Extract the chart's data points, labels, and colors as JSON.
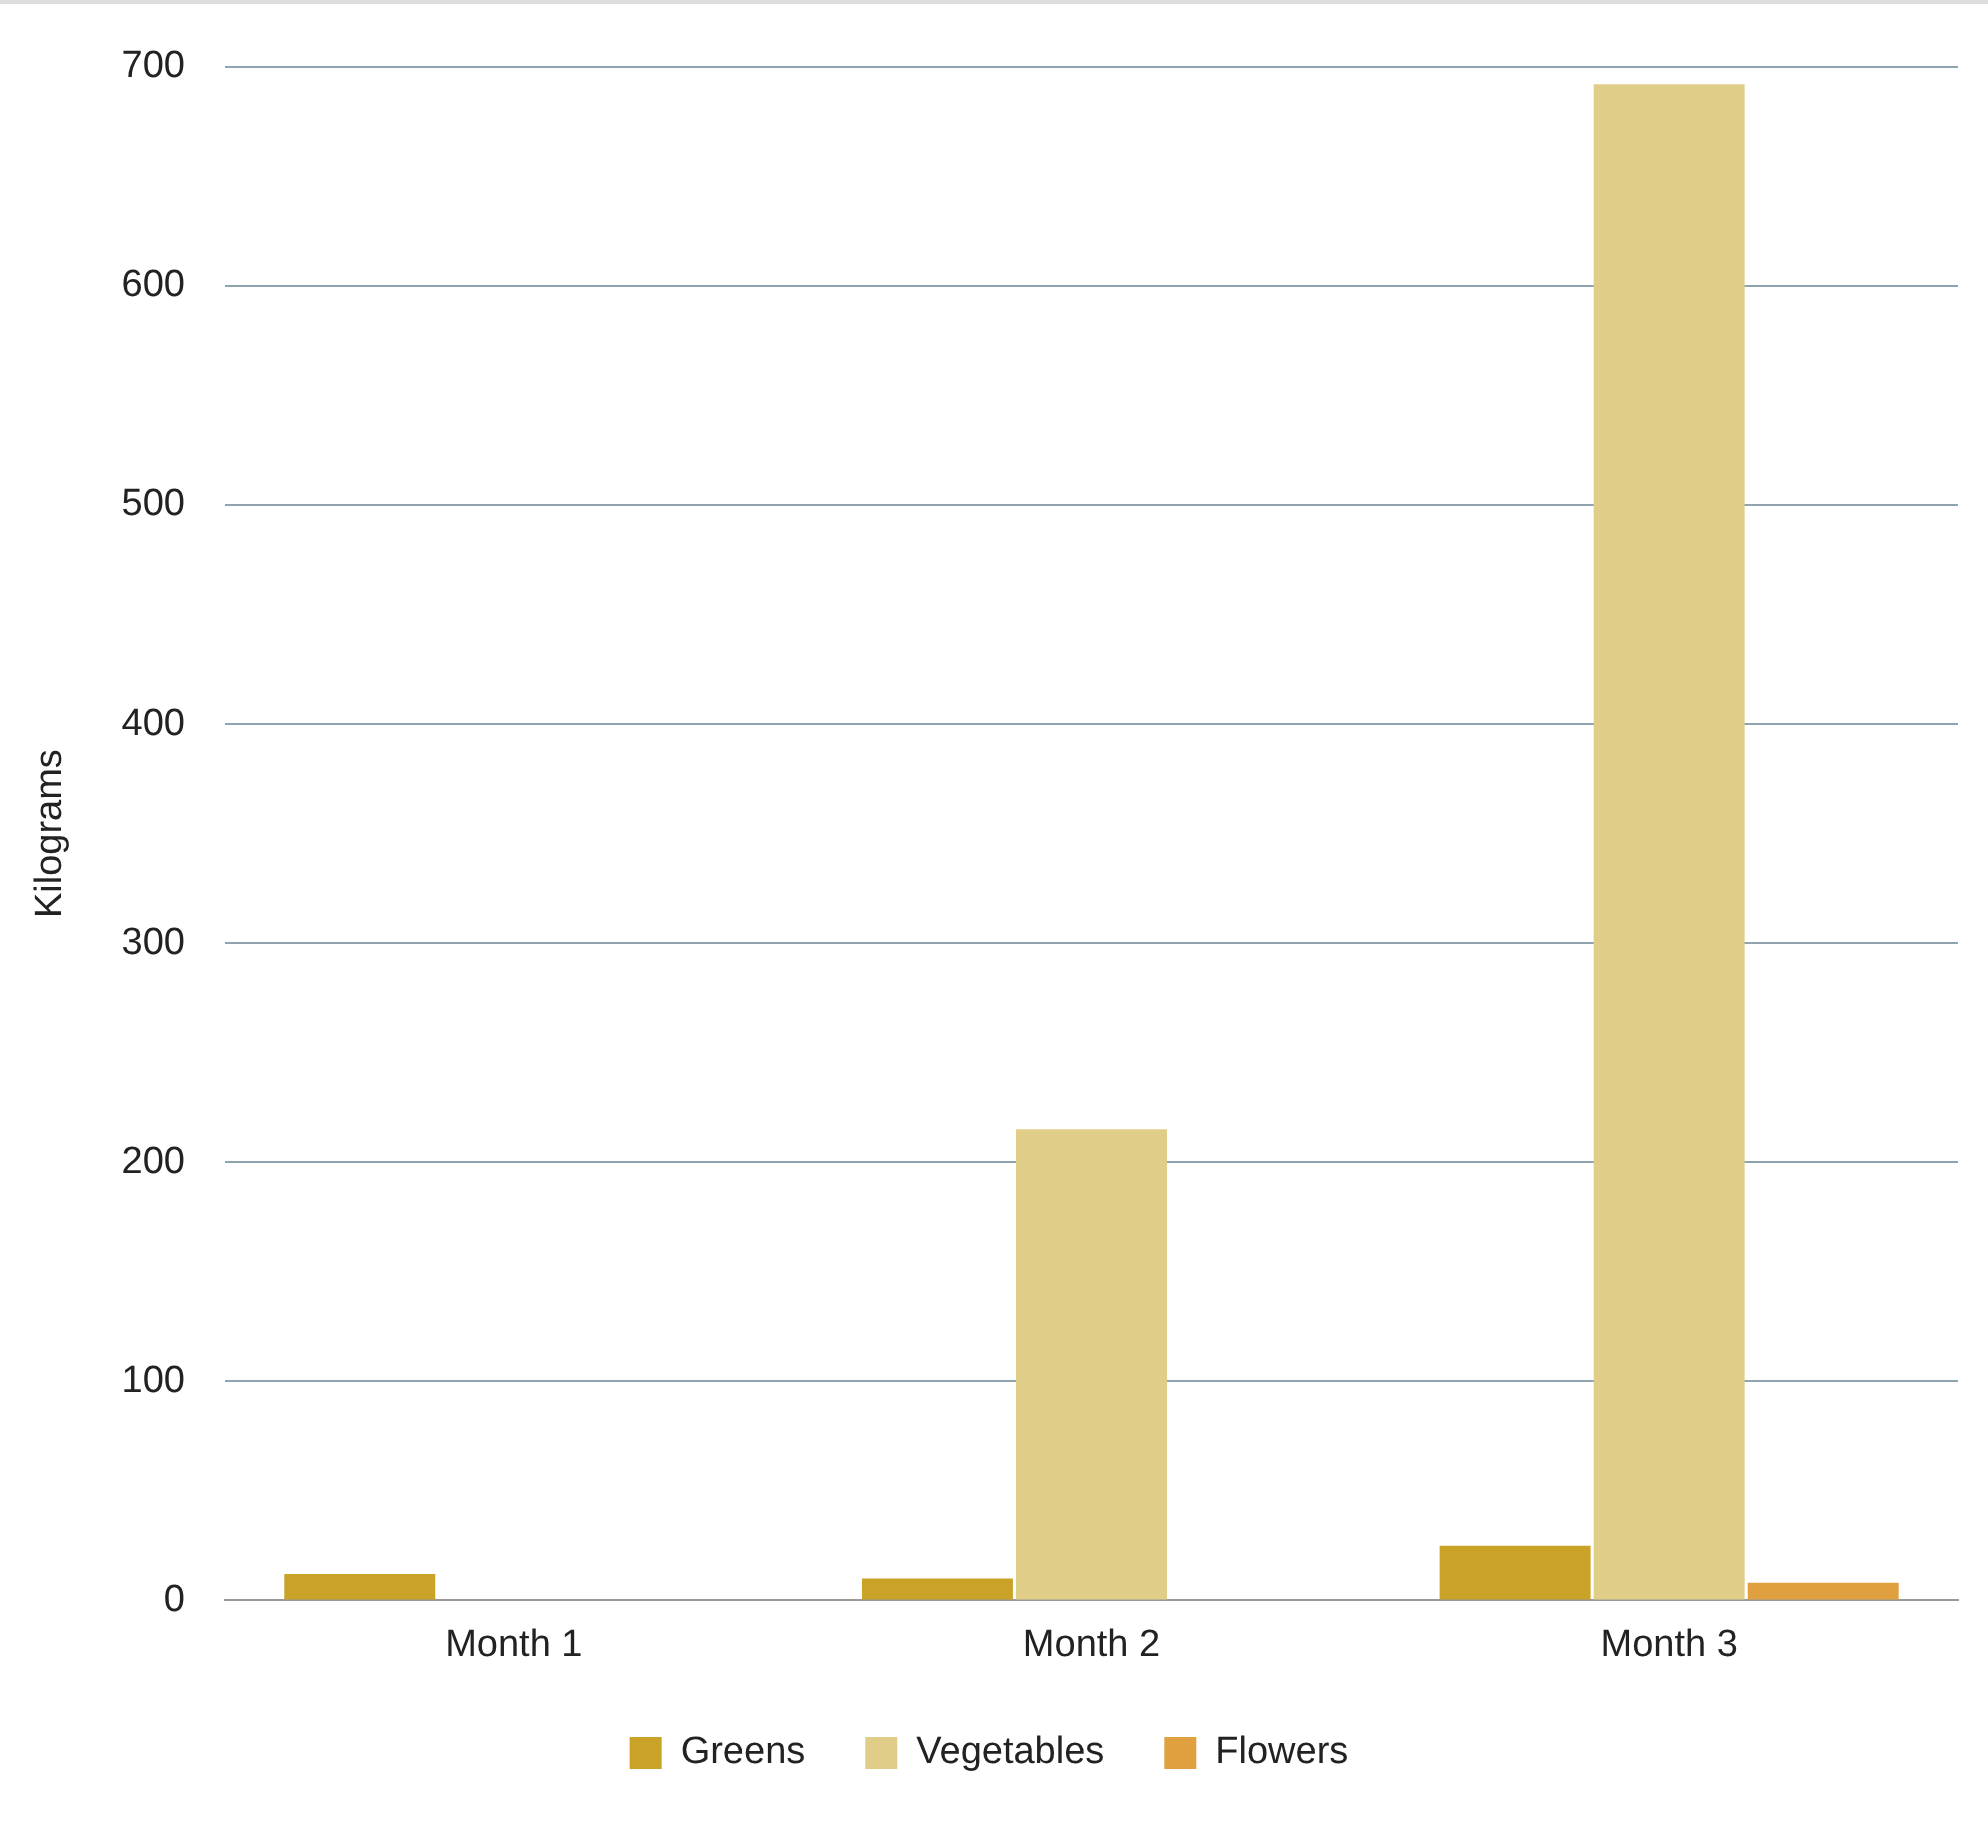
{
  "chart_data": {
    "type": "bar",
    "ylabel": "Kilograms",
    "categories": [
      "Month 1",
      "Month 2",
      "Month 3"
    ],
    "series": [
      {
        "name": "Greens",
        "color": "#c9a227",
        "values": [
          12,
          10,
          25
        ]
      },
      {
        "name": "Vegetables",
        "color": "#e0cd88",
        "values": [
          0,
          215,
          692
        ]
      },
      {
        "name": "Flowers",
        "color": "#e0a040",
        "values": [
          0,
          0,
          8
        ]
      }
    ],
    "ylim": [
      0,
      700
    ],
    "yticks": [
      0,
      100,
      200,
      300,
      400,
      500,
      600,
      700
    ],
    "grid": "y",
    "legend": "bottom"
  }
}
